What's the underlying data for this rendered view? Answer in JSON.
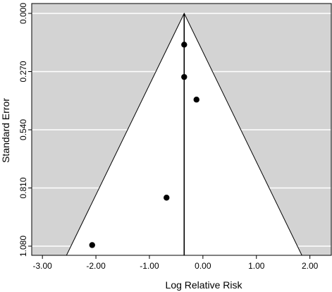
{
  "chart_data": {
    "type": "scatter",
    "subtype": "funnel-plot",
    "title": "",
    "xlabel": "Log Relative Risk",
    "ylabel": "Standard Error",
    "xlim": [
      -3.2,
      2.4
    ],
    "ylim": [
      0.0,
      1.08
    ],
    "y_reversed": true,
    "x_ticks": [
      -3.0,
      -2.0,
      -1.0,
      0.0,
      1.0,
      2.0
    ],
    "x_tick_labels": [
      "-3.00",
      "-2.00",
      "-1.00",
      "0.00",
      "1.00",
      "2.00"
    ],
    "y_ticks": [
      0.0,
      0.27,
      0.54,
      0.81,
      1.08
    ],
    "y_tick_labels": [
      "0.000",
      "0.270",
      "0.540",
      "0.810",
      "1.080"
    ],
    "pooled_estimate": -0.35,
    "funnel_z": 1.96,
    "grid": true,
    "background_color": "#d3d3d3",
    "funnel_color": "#ffffff",
    "grid_color": "#ffffff",
    "point_color": "#000000",
    "points": [
      {
        "x": -0.35,
        "y": 0.145
      },
      {
        "x": -0.35,
        "y": 0.295
      },
      {
        "x": -0.12,
        "y": 0.4
      },
      {
        "x": -0.68,
        "y": 0.855
      },
      {
        "x": -2.07,
        "y": 1.075
      }
    ]
  }
}
